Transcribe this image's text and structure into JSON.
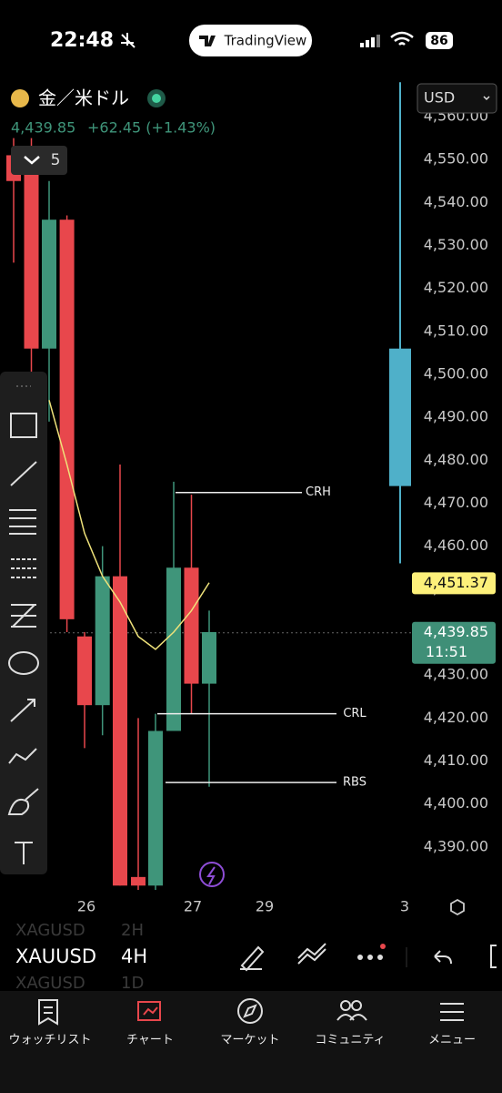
{
  "status_bar": {
    "time": "22:48",
    "app": "TradingView",
    "battery": "86"
  },
  "header": {
    "symbol": "金／米ドル",
    "price": "4,439.85",
    "change": "+62.45 (+1.43%)",
    "interval_count": "5",
    "currency": "USD"
  },
  "chart_data": {
    "type": "candlestick",
    "up_color": "#3f957a",
    "down_color": "#e8474c",
    "candles": [
      {
        "open": 4551,
        "high": 4555,
        "low": 4526,
        "close": 4545
      },
      {
        "open": 4552,
        "high": 4555,
        "low": 4496,
        "close": 4506
      },
      {
        "open": 4506,
        "high": 4545,
        "low": 4489,
        "close": 4536
      },
      {
        "open": 4536,
        "high": 4537,
        "low": 4440,
        "close": 4443
      },
      {
        "open": 4439,
        "high": 4440,
        "low": 4413,
        "close": 4423
      },
      {
        "open": 4423,
        "high": 4460,
        "low": 4416,
        "close": 4453
      },
      {
        "open": 4453,
        "high": 4479,
        "low": 4381,
        "close": 4381
      },
      {
        "open": 4383,
        "high": 4420,
        "low": 4380,
        "close": 4381
      },
      {
        "open": 4381,
        "high": 4421,
        "low": 4380,
        "close": 4417
      },
      {
        "open": 4417,
        "high": 4475,
        "low": 4417,
        "close": 4455
      },
      {
        "open": 4455,
        "high": 4472,
        "low": 4421,
        "close": 4428
      },
      {
        "open": 4428,
        "high": 4445,
        "low": 4404,
        "close": 4440
      },
      {
        "open": 4474,
        "high": 4568,
        "low": 4456,
        "close": 4506,
        "color": "#4fb0c9"
      }
    ],
    "ma": {
      "color": "#efe27a",
      "values": [
        null,
        null,
        4494,
        4479,
        4463,
        4453,
        4447,
        4439,
        4436,
        4440,
        4445,
        4451.5
      ]
    },
    "ylim": [
      4380,
      4560
    ],
    "yticks": [
      {
        "value": 4560,
        "label": "4,560.00"
      },
      {
        "value": 4550,
        "label": "4,550.00"
      },
      {
        "value": 4540,
        "label": "4,540.00"
      },
      {
        "value": 4530,
        "label": "4,530.00"
      },
      {
        "value": 4520,
        "label": "4,520.00"
      },
      {
        "value": 4510,
        "label": "4,510.00"
      },
      {
        "value": 4500,
        "label": "4,500.00"
      },
      {
        "value": 4490,
        "label": "4,490.00"
      },
      {
        "value": 4480,
        "label": "4,480.00"
      },
      {
        "value": 4470,
        "label": "4,470.00"
      },
      {
        "value": 4460,
        "label": "4,460.00"
      },
      {
        "value": 4450,
        "label": "4,450.00"
      },
      {
        "value": 4440,
        "label": "4,440.00"
      },
      {
        "value": 4430,
        "label": "4,430.00"
      },
      {
        "value": 4420,
        "label": "4,420.00"
      },
      {
        "value": 4410,
        "label": "4,410.00"
      },
      {
        "value": 4400,
        "label": "4,400.00"
      },
      {
        "value": 4390,
        "label": "4,390.00"
      }
    ],
    "x_labels": [
      "26",
      "27",
      "29",
      "3"
    ],
    "levels": [
      {
        "name": "CRH",
        "value": 4472.5
      },
      {
        "name": "CRL",
        "value": 4421
      },
      {
        "name": "RBS",
        "value": 4405
      }
    ],
    "last_price": 4439.85,
    "price_tags": [
      {
        "value": 4451.37,
        "label": "4,451.37",
        "color": "#fdf07a"
      },
      {
        "value": 4439.85,
        "label": "4,439.85",
        "countdown": "11:51",
        "color": "#3f8f77"
      }
    ]
  },
  "tickers": [
    {
      "symbol": "XAGUSD",
      "interval": "2H"
    },
    {
      "symbol": "XAUUSD",
      "interval": "4H"
    },
    {
      "symbol": "XAGUSD",
      "interval": "1D"
    }
  ],
  "nav": [
    "ウォッチリスト",
    "チャート",
    "マーケット",
    "コミュニティ",
    "メニュー"
  ]
}
